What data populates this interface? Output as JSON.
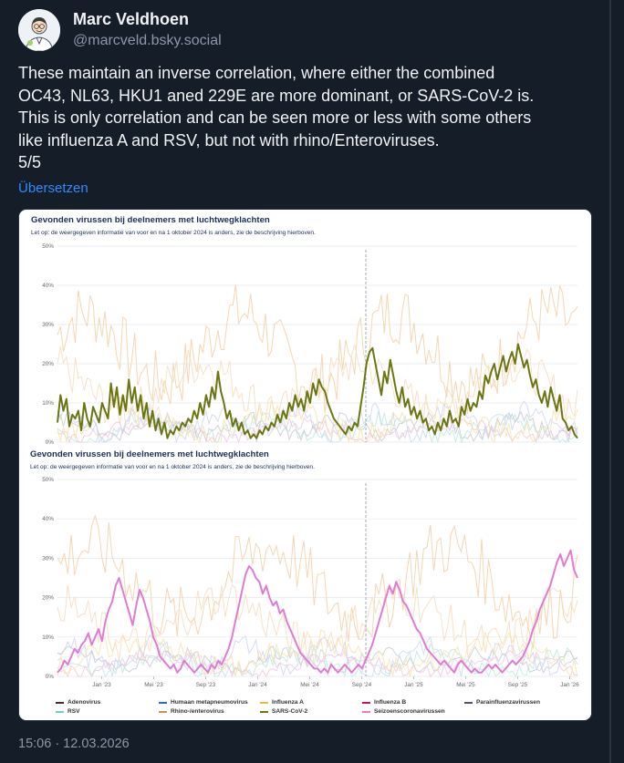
{
  "author": {
    "display_name": "Marc Veldhoen",
    "handle": "@marcveld.bsky.social"
  },
  "post": {
    "lines": [
      "These maintain an inverse correlation, where either the combined",
      "OC43, NL63, HKU1 aned 229E are more dominant, or SARS-CoV-2 is.",
      "This is only correlation and can be seen more or less with some others",
      "like influenza A and RSV, but not with rhino/Enteroviruses.",
      "5/5"
    ],
    "translate_label": "Übersetzen",
    "timestamp": "15:06 · 12.03.2026"
  },
  "chart_data": [
    {
      "type": "line",
      "title": "Gevonden virussen bij deelnemers met luchtwegklachten",
      "subtitle": "Let op: de weergegeven informatie van voor en na 1 oktober 2024 is anders, zie de beschrijving hierboven.",
      "yticks": [
        "0%",
        "10%",
        "20%",
        "30%",
        "40%",
        "50%"
      ],
      "ylim": [
        0,
        50
      ],
      "highlight": "SARS-CoV-2",
      "highlight_color": "#6b7613",
      "highlight_values": [
        5,
        12,
        8,
        11,
        4,
        7,
        6,
        8,
        3,
        10,
        6,
        4,
        9,
        7,
        5,
        10,
        8,
        6,
        15,
        9,
        14,
        7,
        12,
        8,
        16,
        10,
        14,
        8,
        12,
        6,
        10,
        4,
        8,
        3,
        6,
        2,
        5,
        1,
        3,
        2,
        4,
        3,
        5,
        4,
        6,
        5,
        8,
        6,
        10,
        7,
        12,
        9,
        14,
        11,
        18,
        13,
        10,
        6,
        8,
        4,
        6,
        3,
        5,
        2,
        3,
        1,
        2,
        1,
        3,
        2,
        4,
        3,
        5,
        4,
        7,
        5,
        8,
        6,
        10,
        8,
        12,
        9,
        11,
        8,
        13,
        10,
        15,
        12,
        16,
        14,
        13,
        10,
        8,
        6,
        5,
        4,
        3,
        2,
        4,
        3,
        5,
        4,
        9,
        14,
        20,
        23,
        24,
        20,
        16,
        12,
        18,
        15,
        21,
        17,
        13,
        10,
        14,
        9,
        11,
        7,
        9,
        6,
        8,
        5,
        6,
        3,
        4,
        2,
        5,
        3,
        6,
        4,
        8,
        5,
        6,
        4,
        9,
        7,
        11,
        8,
        10,
        9,
        13,
        11,
        17,
        15,
        18,
        20,
        16,
        19,
        22,
        18,
        21,
        23,
        20,
        25,
        22,
        19,
        21,
        17,
        14,
        16,
        12,
        10,
        13,
        9,
        14,
        11,
        8,
        12,
        6,
        5,
        3,
        4,
        2,
        1
      ]
    },
    {
      "type": "line",
      "title": "Gevonden virussen bij deelnemers met luchtwegklachten",
      "subtitle": "Let op: de weergegeven informatie van voor en na 1 oktober 2024 is anders, zie de beschrijving hierboven.",
      "yticks": [
        "0%",
        "10%",
        "20%",
        "30%",
        "40%",
        "50%"
      ],
      "ylim": [
        0,
        50
      ],
      "xticks": [
        "Jan '23",
        "Mei '23",
        "Sep '23",
        "Jan '24",
        "Mei '24",
        "Sep '24",
        "Jan '25",
        "Mei '25",
        "Sep '25",
        "Jan '26"
      ],
      "highlight": "Seizoenscoronavirussen",
      "highlight_color": "#e07ad2",
      "highlight_values": [
        1,
        2,
        4,
        3,
        5,
        7,
        6,
        8,
        9,
        11,
        8,
        10,
        12,
        9,
        14,
        17,
        19,
        23,
        25,
        22,
        19,
        16,
        13,
        18,
        22,
        20,
        17,
        14,
        10,
        8,
        5,
        4,
        3,
        2,
        3,
        1,
        2,
        4,
        3,
        2,
        1,
        2,
        3,
        2,
        1,
        3,
        2,
        4,
        3,
        5,
        7,
        10,
        14,
        18,
        22,
        26,
        28,
        27,
        25,
        24,
        21,
        23,
        20,
        18,
        19,
        16,
        17,
        14,
        12,
        10,
        8,
        6,
        5,
        4,
        3,
        2,
        2,
        1,
        2,
        1,
        3,
        2,
        1,
        2,
        3,
        2,
        1,
        2,
        3,
        2,
        4,
        6,
        8,
        11,
        14,
        17,
        20,
        23,
        21,
        24,
        22,
        19,
        18,
        16,
        14,
        12,
        11,
        9,
        7,
        6,
        5,
        4,
        3,
        4,
        3,
        2,
        1,
        3,
        4,
        3,
        2,
        1,
        2,
        1,
        1,
        2,
        3,
        2,
        3,
        2,
        1,
        2,
        3,
        4,
        3,
        4,
        5,
        7,
        9,
        12,
        14,
        17,
        19,
        21,
        23,
        26,
        29,
        31,
        28,
        30,
        32,
        27,
        25
      ],
      "legend": [
        "Adenovirus",
        "RSV",
        "Humaan metapneumovirus",
        "Rhino-/enterovirus",
        "Influenza A",
        "SARS-CoV-2",
        "Influenza B",
        "Seizoenscoronavirussen",
        "Parainfluenzavirussen"
      ],
      "legend_colors": [
        "#333333",
        "#6fcfc6",
        "#1f6fd1",
        "#c98c5a",
        "#f2b84b",
        "#6b7613",
        "#c2185b",
        "#e07ad2",
        "#4a5566"
      ]
    }
  ]
}
